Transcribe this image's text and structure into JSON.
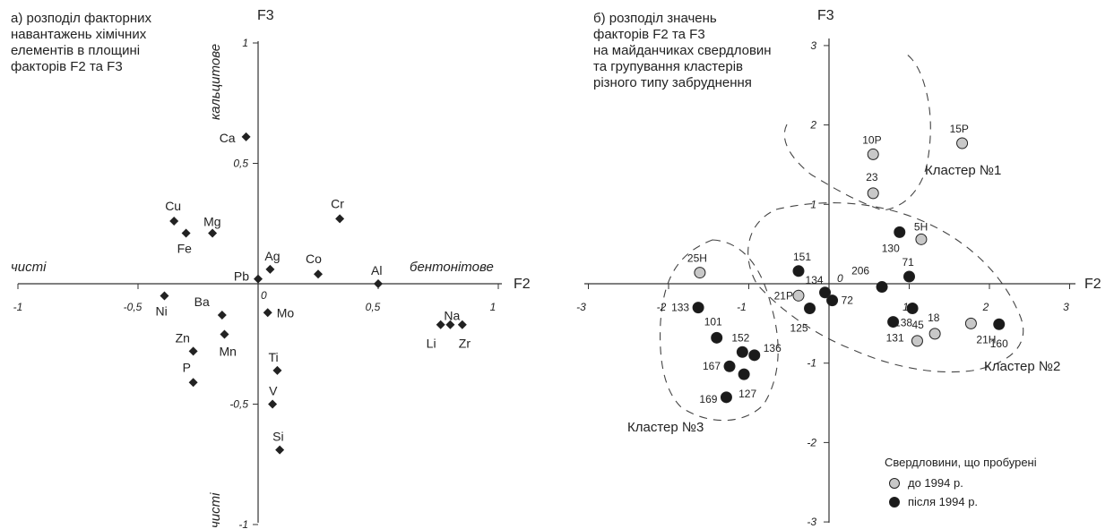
{
  "panel_a": {
    "caption": "а) розподіл факторних\nнавантажень хімічних\nелементів в площині\nфакторів F2 та F3",
    "labels": {
      "f3_top_pole": "кальцитове",
      "f3_bottom_pole": "чисті",
      "f2_left_pole": "чисті",
      "f2_right_pole": "бентонітове",
      "origin": "0"
    }
  },
  "panel_b": {
    "caption": "б) розподіл значень\nфакторів F2 та F3\nна майданчиках свердловин\nта групування кластерів\nрізного типу забруднення",
    "origin": "0",
    "clusters": [
      {
        "name": "Кластер №1"
      },
      {
        "name": "Кластер №2"
      },
      {
        "name": "Кластер №3"
      }
    ],
    "legend": {
      "title": "Свердловини, що пробурені",
      "items": [
        {
          "label": "до 1994 р.",
          "color": "#c8c8c8"
        },
        {
          "label": "після 1994 р.",
          "color": "#1a1a1a"
        }
      ]
    }
  },
  "chart_data": [
    {
      "type": "scatter",
      "xlabel": "F2",
      "ylabel": "F3",
      "xlim": [
        -1,
        1
      ],
      "ylim": [
        -1,
        1
      ],
      "x_ticks": [
        "-1",
        "-0,5",
        "0,5",
        "1"
      ],
      "y_ticks": [
        "1",
        "0,5",
        "-0,5",
        "-1"
      ],
      "marker": "diamond",
      "points": [
        {
          "name": "Ca",
          "x": -0.05,
          "y": 0.61
        },
        {
          "name": "Cu",
          "x": -0.35,
          "y": 0.26
        },
        {
          "name": "Fe",
          "x": -0.3,
          "y": 0.21
        },
        {
          "name": "Mg",
          "x": -0.19,
          "y": 0.21
        },
        {
          "name": "Cr",
          "x": 0.34,
          "y": 0.27
        },
        {
          "name": "Ag",
          "x": 0.05,
          "y": 0.06
        },
        {
          "name": "Pb",
          "x": 0.0,
          "y": 0.02
        },
        {
          "name": "Co",
          "x": 0.25,
          "y": 0.04
        },
        {
          "name": "Al",
          "x": 0.5,
          "y": 0.0
        },
        {
          "name": "Ni",
          "x": -0.39,
          "y": -0.05
        },
        {
          "name": "Na",
          "x": 0.8,
          "y": -0.17
        },
        {
          "name": "Li",
          "x": 0.76,
          "y": -0.17
        },
        {
          "name": "Zr",
          "x": 0.85,
          "y": -0.17
        },
        {
          "name": "Ba",
          "x": -0.15,
          "y": -0.13
        },
        {
          "name": "Mo",
          "x": 0.04,
          "y": -0.12
        },
        {
          "name": "Mn",
          "x": -0.14,
          "y": -0.21
        },
        {
          "name": "Zn",
          "x": -0.27,
          "y": -0.28
        },
        {
          "name": "P",
          "x": -0.27,
          "y": -0.41
        },
        {
          "name": "Ti",
          "x": 0.08,
          "y": -0.36
        },
        {
          "name": "V",
          "x": 0.06,
          "y": -0.5
        },
        {
          "name": "Si",
          "x": 0.09,
          "y": -0.69
        }
      ]
    },
    {
      "type": "scatter",
      "xlabel": "F2",
      "ylabel": "F3",
      "xlim": [
        -3,
        3
      ],
      "ylim": [
        -3,
        3
      ],
      "x_ticks": [
        "-3",
        "-2",
        "-1",
        "1",
        "2",
        "3"
      ],
      "y_ticks": [
        "3",
        "2",
        "1",
        "-1",
        "-2",
        "-3"
      ],
      "series": [
        {
          "name": "до 1994 р.",
          "points": [
            {
              "name": "10Р",
              "x": 0.55,
              "y": 1.63
            },
            {
              "name": "15Р",
              "x": 1.66,
              "y": 1.77
            },
            {
              "name": "23",
              "x": 0.55,
              "y": 1.14
            },
            {
              "name": "5Н",
              "x": 1.15,
              "y": 0.56
            },
            {
              "name": "25Н",
              "x": -1.61,
              "y": 0.14
            },
            {
              "name": "21Р",
              "x": -0.38,
              "y": -0.15
            },
            {
              "name": "45",
              "x": 1.1,
              "y": -0.72
            },
            {
              "name": "18",
              "x": 1.32,
              "y": -0.63
            },
            {
              "name": "21Н",
              "x": 1.77,
              "y": -0.5
            }
          ]
        },
        {
          "name": "після 1994 р.",
          "points": [
            {
              "name": "130",
              "x": 0.88,
              "y": 0.65
            },
            {
              "name": "151",
              "x": -0.38,
              "y": 0.16
            },
            {
              "name": "206",
              "x": 0.66,
              "y": -0.04
            },
            {
              "name": "71",
              "x": 1.0,
              "y": 0.09
            },
            {
              "name": "134",
              "x": -0.05,
              "y": -0.11
            },
            {
              "name": "72",
              "x": 0.04,
              "y": -0.21
            },
            {
              "name": "125",
              "x": -0.24,
              "y": -0.31
            },
            {
              "name": "138",
              "x": 1.04,
              "y": -0.31
            },
            {
              "name": "131",
              "x": 0.8,
              "y": -0.48
            },
            {
              "name": "160",
              "x": 2.12,
              "y": -0.51
            },
            {
              "name": "133",
              "x": -1.63,
              "y": -0.3
            },
            {
              "name": "101",
              "x": -1.4,
              "y": -0.68
            },
            {
              "name": "152",
              "x": -1.08,
              "y": -0.86
            },
            {
              "name": "136",
              "x": -0.93,
              "y": -0.9
            },
            {
              "name": "167",
              "x": -1.24,
              "y": -1.04
            },
            {
              "name": "127",
              "x": -1.06,
              "y": -1.14
            },
            {
              "name": "169",
              "x": -1.28,
              "y": -1.43
            }
          ]
        }
      ]
    }
  ]
}
